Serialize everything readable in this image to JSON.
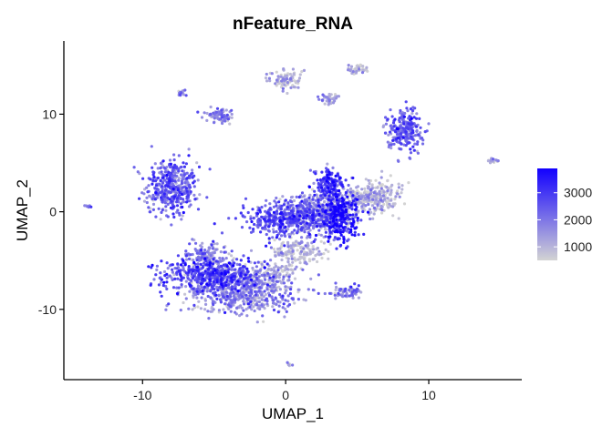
{
  "chart_data": {
    "type": "scatter",
    "title": "nFeature_RNA",
    "xlabel": "UMAP_1",
    "ylabel": "UMAP_2",
    "xlim": [
      -15.5,
      16.5
    ],
    "ylim": [
      -17.2,
      17.5
    ],
    "x_ticks": [
      -10,
      0,
      10
    ],
    "y_ticks": [
      -10,
      0,
      10
    ],
    "x_tick_labels": [
      "-10",
      "0",
      "10"
    ],
    "y_tick_labels": [
      "-10",
      "0",
      "10"
    ],
    "grid": false,
    "legend": {
      "position": "right",
      "type": "colorbar",
      "range": [
        500,
        3900
      ],
      "ticks": [
        1000,
        2000,
        3000
      ],
      "tick_labels": [
        "1000",
        "2000",
        "3000"
      ],
      "low_color": "#d3d3d3",
      "high_color": "#1200ff"
    },
    "clusters": [
      {
        "cx": -8.0,
        "cy": 2.5,
        "sx": 0.9,
        "sy": 1.4,
        "n": 420,
        "mean": 2200
      },
      {
        "cx": -5.0,
        "cy": -6.5,
        "sx": 1.8,
        "sy": 0.9,
        "n": 520,
        "mean": 2600
      },
      {
        "cx": -3.0,
        "cy": -8.3,
        "sx": 2.0,
        "sy": 1.0,
        "n": 520,
        "mean": 1600
      },
      {
        "cx": -5.5,
        "cy": -4.5,
        "sx": 0.8,
        "sy": 0.8,
        "n": 140,
        "mean": 1500
      },
      {
        "cx": 0.5,
        "cy": -0.8,
        "sx": 1.6,
        "sy": 0.9,
        "n": 520,
        "mean": 2400
      },
      {
        "cx": 2.8,
        "cy": 0.2,
        "sx": 1.3,
        "sy": 0.8,
        "n": 320,
        "mean": 1200
      },
      {
        "cx": 3.8,
        "cy": -0.5,
        "sx": 0.6,
        "sy": 1.3,
        "n": 260,
        "mean": 3300
      },
      {
        "cx": 3.0,
        "cy": 2.8,
        "sx": 0.5,
        "sy": 0.9,
        "n": 160,
        "mean": 2800
      },
      {
        "cx": 6.0,
        "cy": 1.5,
        "sx": 1.0,
        "sy": 0.8,
        "n": 280,
        "mean": 900
      },
      {
        "cx": 0.8,
        "cy": -4.2,
        "sx": 1.0,
        "sy": 0.7,
        "n": 160,
        "mean": 900
      },
      {
        "cx": -1.0,
        "cy": -6.3,
        "sx": 1.0,
        "sy": 0.6,
        "n": 110,
        "mean": 1000
      },
      {
        "cx": 8.3,
        "cy": 8.3,
        "sx": 0.6,
        "sy": 1.0,
        "n": 240,
        "mean": 2200
      },
      {
        "cx": -4.6,
        "cy": 9.8,
        "sx": 0.45,
        "sy": 0.45,
        "n": 70,
        "mean": 1700
      },
      {
        "cx": 0.0,
        "cy": 13.6,
        "sx": 0.6,
        "sy": 0.5,
        "n": 90,
        "mean": 900
      },
      {
        "cx": 5.0,
        "cy": 14.6,
        "sx": 0.35,
        "sy": 0.25,
        "n": 40,
        "mean": 800
      },
      {
        "cx": 3.0,
        "cy": 11.5,
        "sx": 0.35,
        "sy": 0.3,
        "n": 40,
        "mean": 1200
      },
      {
        "cx": -7.3,
        "cy": 12.2,
        "sx": 0.18,
        "sy": 0.15,
        "n": 15,
        "mean": 1800
      },
      {
        "cx": 4.3,
        "cy": -8.2,
        "sx": 0.55,
        "sy": 0.35,
        "n": 60,
        "mean": 1800
      },
      {
        "cx": 14.5,
        "cy": 5.3,
        "sx": 0.22,
        "sy": 0.18,
        "n": 15,
        "mean": 1300
      },
      {
        "cx": -13.8,
        "cy": 0.6,
        "sx": 0.12,
        "sy": 0.12,
        "n": 8,
        "mean": 1800
      },
      {
        "cx": 0.3,
        "cy": -15.6,
        "sx": 0.12,
        "sy": 0.1,
        "n": 6,
        "mean": 1100
      }
    ]
  }
}
